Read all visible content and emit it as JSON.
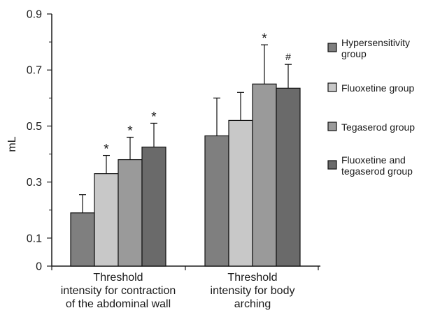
{
  "chart_data": {
    "type": "bar",
    "title": "",
    "xlabel": "",
    "ylabel": "mL",
    "ylim": [
      0,
      0.9
    ],
    "yticks": [
      0,
      0.1,
      0.3,
      0.5,
      0.7,
      0.9
    ],
    "ytick_labels": [
      "0",
      "0.1",
      "0.3",
      "0.5",
      "0.7",
      "0.9"
    ],
    "grid": false,
    "legend_position": "right",
    "categories": [
      [
        "Threshold",
        "intensity for contraction",
        "of the abdominal wall"
      ],
      [
        "Threshold",
        "intensity for body",
        "arching"
      ]
    ],
    "series": [
      {
        "name": [
          "Hypersensitivity",
          "group"
        ],
        "color": "#7f7f7f",
        "values": [
          0.19,
          0.465
        ],
        "errors": [
          0.065,
          0.135
        ],
        "marks": [
          "",
          ""
        ]
      },
      {
        "name": [
          "Fluoxetine group"
        ],
        "color": "#c8c8c8",
        "values": [
          0.33,
          0.52
        ],
        "errors": [
          0.065,
          0.1
        ],
        "marks": [
          "*",
          ""
        ]
      },
      {
        "name": [
          "Tegaserod group"
        ],
        "color": "#9a9a9a",
        "values": [
          0.38,
          0.65
        ],
        "errors": [
          0.08,
          0.14
        ],
        "marks": [
          "*",
          "*"
        ]
      },
      {
        "name": [
          "Fluoxetine and",
          "tegaserod group"
        ],
        "color": "#6a6a6a",
        "values": [
          0.425,
          0.635
        ],
        "errors": [
          0.085,
          0.085
        ],
        "marks": [
          "*",
          "#"
        ]
      }
    ]
  }
}
